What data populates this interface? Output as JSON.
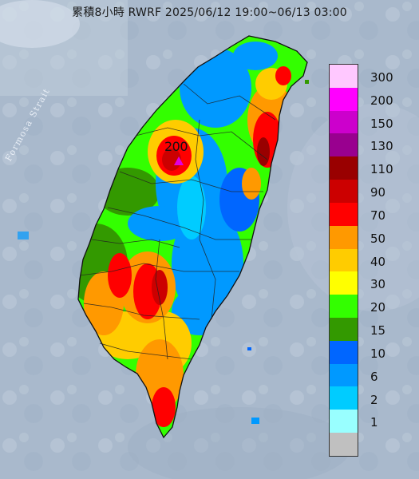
{
  "title": "累積8小時 RWRF 2025/06/12 19:00~06/13 03:00",
  "strait_label": "Formosa Strait",
  "max_value_label": "200",
  "legend": {
    "levels": [
      {
        "label": "300",
        "color": "#ffc8ff"
      },
      {
        "label": "200",
        "color": "#ff00ff"
      },
      {
        "label": "150",
        "color": "#cc00cc"
      },
      {
        "label": "130",
        "color": "#99008f"
      },
      {
        "label": "110",
        "color": "#990000"
      },
      {
        "label": "90",
        "color": "#cc0000"
      },
      {
        "label": "70",
        "color": "#ff0000"
      },
      {
        "label": "50",
        "color": "#ff9900"
      },
      {
        "label": "40",
        "color": "#ffcc00"
      },
      {
        "label": "30",
        "color": "#ffff00"
      },
      {
        "label": "20",
        "color": "#33ff00"
      },
      {
        "label": "15",
        "color": "#339900"
      },
      {
        "label": "10",
        "color": "#0066ff"
      },
      {
        "label": "6",
        "color": "#0099ff"
      },
      {
        "label": "2",
        "color": "#00ccff"
      },
      {
        "label": "1",
        "color": "#99ffff"
      },
      {
        "label": "",
        "color": "#c0c0c0"
      }
    ]
  }
}
